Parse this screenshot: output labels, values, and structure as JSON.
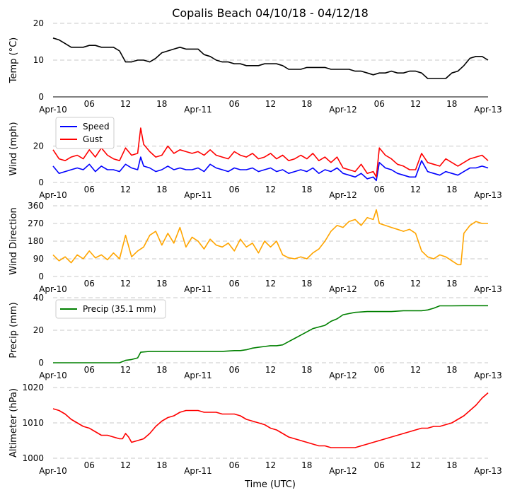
{
  "figure": {
    "title": "Copalis Beach 04/10/18 - 04/12/18",
    "xlabel": "Time (UTC)"
  },
  "colors": {
    "temp": "#000000",
    "speed": "#0000ff",
    "gust": "#ff0000",
    "direction": "#ffa500",
    "precip": "#008000",
    "altimeter": "#ff0000",
    "grid": "#c8c8c8"
  },
  "chart_data": [
    {
      "type": "line",
      "id": "temp",
      "ylabel": "Temp ($^\\circ$C)",
      "ylabel_display": "Temp (°C)",
      "ylim": [
        0,
        20
      ],
      "yticks": [
        "0",
        "10",
        "20"
      ],
      "xlim": [
        0,
        72
      ],
      "xticks": [
        {
          "x": 0,
          "label": "Apr-10"
        },
        {
          "x": 6,
          "label": "06"
        },
        {
          "x": 12,
          "label": "12"
        },
        {
          "x": 18,
          "label": "18"
        },
        {
          "x": 24,
          "label": "Apr-11"
        },
        {
          "x": 30,
          "label": "06"
        },
        {
          "x": 36,
          "label": "12"
        },
        {
          "x": 42,
          "label": "18"
        },
        {
          "x": 48,
          "label": "Apr-12"
        },
        {
          "x": 54,
          "label": "06"
        },
        {
          "x": 60,
          "label": "12"
        },
        {
          "x": 66,
          "label": "18"
        },
        {
          "x": 72,
          "label": "Apr-13"
        }
      ],
      "series": [
        {
          "name": "Temp",
          "color_key": "temp",
          "x": [
            0,
            1,
            2,
            3,
            4,
            5,
            6,
            7,
            8,
            9,
            10,
            11,
            11.5,
            12,
            13,
            14,
            15,
            16,
            17,
            18,
            19,
            20,
            21,
            22,
            23,
            24,
            25,
            26,
            27,
            28,
            29,
            30,
            31,
            32,
            33,
            34,
            35,
            36,
            37,
            38,
            39,
            40,
            41,
            42,
            43,
            44,
            45,
            46,
            47,
            48,
            49,
            50,
            51,
            52,
            53,
            54,
            55,
            56,
            57,
            58,
            59,
            60,
            61,
            62,
            63,
            64,
            65,
            66,
            67,
            68,
            69,
            70,
            71,
            72
          ],
          "values": [
            16,
            15.5,
            14.5,
            13.5,
            13.5,
            13.5,
            14,
            14,
            13.5,
            13.5,
            13.5,
            12.5,
            11,
            9.5,
            9.5,
            10,
            10,
            9.5,
            10.5,
            12,
            12.5,
            13,
            13.5,
            13,
            13,
            13,
            11.5,
            11,
            10,
            9.5,
            9.5,
            9,
            9,
            8.5,
            8.5,
            8.5,
            9,
            9,
            9,
            8.5,
            7.5,
            7.5,
            7.5,
            8,
            8,
            8,
            8,
            7.5,
            7.5,
            7.5,
            7.5,
            7,
            7,
            6.5,
            6,
            6.5,
            6.5,
            7,
            6.5,
            6.5,
            7,
            7,
            6.5,
            5,
            5,
            5,
            5,
            6.5,
            7,
            8.5,
            10.5,
            11,
            11,
            10
          ]
        }
      ],
      "legend": null
    },
    {
      "type": "line",
      "id": "wind",
      "ylabel": "Wind (mph)",
      "ylim": [
        0,
        37
      ],
      "yticks": [
        "0",
        "20"
      ],
      "ytick_values": [
        0,
        20
      ],
      "xlim": [
        0,
        72
      ],
      "series": [
        {
          "name": "Speed",
          "color_key": "speed",
          "x": [
            0,
            1,
            2,
            3,
            4,
            5,
            6,
            7,
            8,
            9,
            10,
            11,
            12,
            13,
            14,
            14.5,
            15,
            16,
            17,
            18,
            19,
            20,
            21,
            22,
            23,
            24,
            25,
            26,
            27,
            28,
            29,
            30,
            31,
            32,
            33,
            34,
            35,
            36,
            37,
            38,
            39,
            40,
            41,
            42,
            43,
            44,
            45,
            46,
            47,
            48,
            49,
            50,
            51,
            52,
            53,
            53.5,
            54,
            55,
            56,
            57,
            58,
            59,
            60,
            61,
            62,
            63,
            64,
            65,
            66,
            67,
            68,
            69,
            70,
            71,
            72
          ],
          "values": [
            9,
            5,
            6,
            7,
            8,
            7,
            10,
            6,
            9,
            7,
            7,
            6,
            10,
            8,
            7,
            14,
            9,
            8,
            6,
            7,
            9,
            7,
            8,
            7,
            7,
            8,
            6,
            10,
            8,
            7,
            6,
            8,
            7,
            7,
            8,
            6,
            7,
            8,
            6,
            7,
            5,
            6,
            7,
            6,
            8,
            5,
            7,
            6,
            8,
            5,
            4,
            3,
            5,
            2,
            3,
            1,
            11,
            8,
            7,
            5,
            4,
            3,
            3,
            12,
            6,
            5,
            4,
            6,
            5,
            4,
            6,
            8,
            8,
            9,
            8
          ]
        },
        {
          "name": "Gust",
          "color_key": "gust",
          "x": [
            0,
            1,
            2,
            3,
            4,
            5,
            6,
            7,
            8,
            9,
            10,
            11,
            12,
            13,
            14,
            14.5,
            15,
            16,
            17,
            18,
            19,
            20,
            21,
            22,
            23,
            24,
            25,
            26,
            27,
            28,
            29,
            30,
            31,
            32,
            33,
            34,
            35,
            36,
            37,
            38,
            39,
            40,
            41,
            42,
            43,
            44,
            45,
            46,
            47,
            48,
            49,
            50,
            51,
            52,
            53,
            53.5,
            54,
            55,
            56,
            57,
            58,
            59,
            60,
            61,
            62,
            63,
            64,
            65,
            66,
            67,
            68,
            69,
            70,
            71,
            72
          ],
          "values": [
            18,
            13,
            12,
            14,
            15,
            13,
            18,
            14,
            19,
            15,
            13,
            12,
            19,
            15,
            16,
            30,
            21,
            17,
            14,
            15,
            20,
            16,
            18,
            17,
            16,
            17,
            15,
            18,
            15,
            14,
            13,
            17,
            15,
            14,
            16,
            13,
            14,
            16,
            13,
            15,
            12,
            13,
            15,
            13,
            16,
            12,
            14,
            11,
            14,
            8,
            7,
            6,
            10,
            5,
            6,
            3,
            19,
            15,
            13,
            10,
            9,
            7,
            7,
            16,
            11,
            10,
            9,
            13,
            11,
            9,
            11,
            13,
            14,
            15,
            12
          ]
        }
      ],
      "legend": {
        "placement": "upper-left",
        "entries": [
          "Speed",
          "Gust"
        ]
      }
    },
    {
      "type": "line",
      "id": "direction",
      "ylabel": "Wind Direction",
      "ylim": [
        0,
        360
      ],
      "yticks": [
        "0",
        "90",
        "180",
        "270",
        "360"
      ],
      "ytick_values": [
        0,
        90,
        180,
        270,
        360
      ],
      "xlim": [
        0,
        72
      ],
      "series": [
        {
          "name": "Direction",
          "color_key": "direction",
          "x": [
            0,
            1,
            2,
            3,
            4,
            5,
            6,
            7,
            8,
            9,
            10,
            11,
            12,
            13,
            14,
            15,
            16,
            17,
            18,
            19,
            20,
            21,
            22,
            23,
            24,
            25,
            26,
            27,
            28,
            29,
            30,
            31,
            32,
            33,
            34,
            35,
            36,
            37,
            38,
            39,
            40,
            41,
            42,
            43,
            44,
            45,
            46,
            47,
            48,
            49,
            50,
            51,
            52,
            53,
            53.5,
            54,
            55,
            56,
            57,
            58,
            59,
            60,
            61,
            62,
            63,
            64,
            65,
            66,
            67,
            67.5,
            68,
            69,
            70,
            71,
            72
          ],
          "values": [
            110,
            80,
            100,
            70,
            110,
            90,
            130,
            95,
            110,
            85,
            120,
            90,
            210,
            100,
            130,
            150,
            210,
            230,
            160,
            220,
            170,
            250,
            150,
            200,
            180,
            140,
            190,
            160,
            150,
            170,
            130,
            190,
            150,
            170,
            120,
            180,
            150,
            180,
            110,
            95,
            90,
            100,
            90,
            120,
            140,
            180,
            230,
            260,
            250,
            280,
            290,
            260,
            300,
            290,
            340,
            270,
            260,
            250,
            240,
            230,
            240,
            220,
            130,
            100,
            90,
            110,
            100,
            80,
            60,
            60,
            220,
            260,
            280,
            270,
            270
          ]
        }
      ],
      "legend": null
    },
    {
      "type": "line",
      "id": "precip",
      "ylabel": "Precip (mm)",
      "ylim": [
        0,
        40
      ],
      "yticks": [
        "0",
        "20",
        "40"
      ],
      "ytick_values": [
        0,
        20,
        40
      ],
      "xlim": [
        0,
        72
      ],
      "series": [
        {
          "name": "Precip (35.1 mm)",
          "color_key": "precip",
          "x": [
            0,
            11,
            12,
            13,
            14,
            14.5,
            16,
            20,
            24,
            28,
            30,
            31,
            32,
            33,
            34,
            35,
            36,
            37,
            38,
            39,
            40,
            41,
            42,
            43,
            44,
            45,
            46,
            47,
            48,
            50,
            52,
            54,
            56,
            58,
            60,
            61,
            62,
            63,
            64,
            66,
            68,
            70,
            72
          ],
          "values": [
            0,
            0,
            1.5,
            2,
            3,
            6.5,
            7,
            7,
            7,
            7,
            7.5,
            7.5,
            8,
            9,
            9.5,
            10,
            10.5,
            10.5,
            11,
            13,
            15,
            17,
            19,
            21,
            22,
            23,
            25.5,
            27,
            29.5,
            31,
            31.5,
            31.5,
            31.5,
            32,
            32,
            32,
            32.5,
            33.5,
            35,
            35,
            35.1,
            35.1,
            35.1
          ]
        }
      ],
      "legend": {
        "placement": "upper-left",
        "entries": [
          "Precip (35.1 mm)"
        ]
      }
    },
    {
      "type": "line",
      "id": "altimeter",
      "ylabel": "Altimeter (hPa)",
      "ylim": [
        1000,
        1020
      ],
      "yticks": [
        "1000",
        "1010",
        "1020"
      ],
      "ytick_values": [
        1000,
        1010,
        1020
      ],
      "xlim": [
        0,
        72
      ],
      "series": [
        {
          "name": "Altimeter",
          "color_key": "altimeter",
          "x": [
            0,
            1,
            2,
            3,
            4,
            5,
            6,
            7,
            8,
            9,
            10,
            11,
            11.5,
            12,
            12.5,
            13,
            14,
            15,
            16,
            17,
            18,
            19,
            20,
            21,
            22,
            23,
            24,
            25,
            26,
            27,
            28,
            29,
            30,
            31,
            32,
            33,
            34,
            35,
            36,
            37,
            38,
            39,
            40,
            41,
            42,
            43,
            44,
            45,
            46,
            47,
            48,
            49,
            50,
            51,
            52,
            53,
            54,
            55,
            56,
            57,
            58,
            59,
            60,
            61,
            62,
            63,
            64,
            65,
            66,
            67,
            68,
            69,
            70,
            71,
            72
          ],
          "values": [
            1014,
            1013.5,
            1012.5,
            1011,
            1010,
            1009,
            1008.5,
            1007.5,
            1006.5,
            1006.5,
            1006,
            1005.5,
            1005.5,
            1007,
            1006,
            1004.5,
            1005,
            1005.5,
            1007,
            1009,
            1010.5,
            1011.5,
            1012,
            1013,
            1013.5,
            1013.5,
            1013.5,
            1013,
            1013,
            1013,
            1012.5,
            1012.5,
            1012.5,
            1012,
            1011,
            1010.5,
            1010,
            1009.5,
            1008.5,
            1008,
            1007,
            1006,
            1005.5,
            1005,
            1004.5,
            1004,
            1003.5,
            1003.5,
            1003,
            1003,
            1003,
            1003,
            1003,
            1003.5,
            1004,
            1004.5,
            1005,
            1005.5,
            1006,
            1006.5,
            1007,
            1007.5,
            1008,
            1008.5,
            1008.5,
            1009,
            1009,
            1009.5,
            1010,
            1011,
            1012,
            1013.5,
            1015,
            1017,
            1018.5
          ]
        }
      ],
      "legend": null
    }
  ]
}
